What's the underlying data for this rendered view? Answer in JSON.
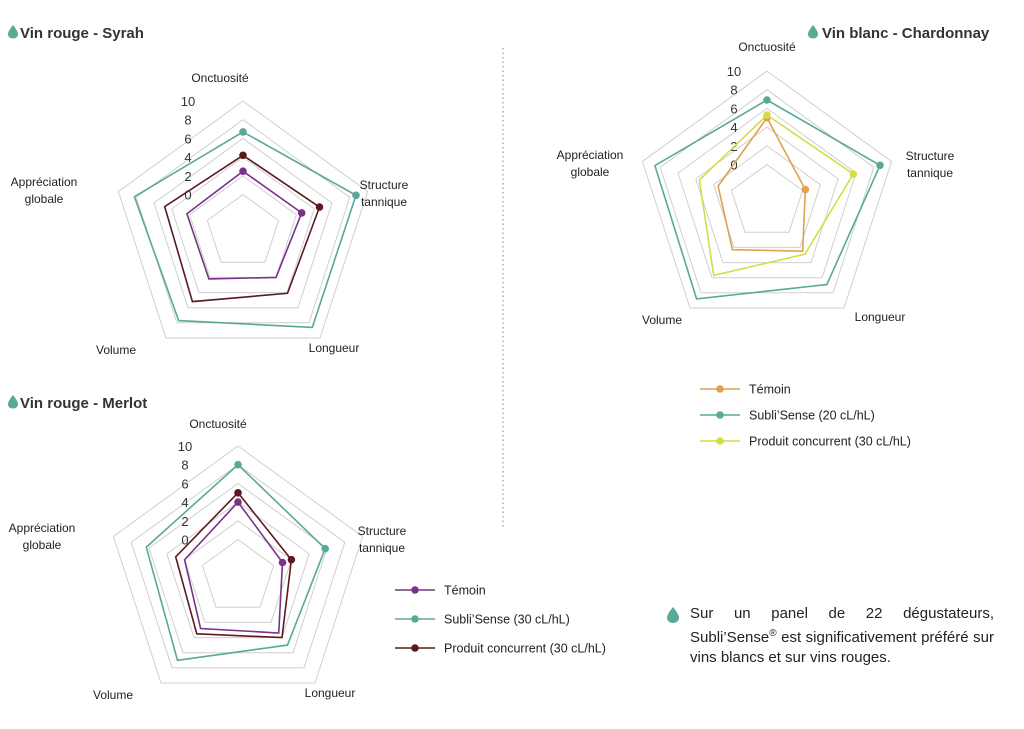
{
  "colors": {
    "grid": "#cfcfcf",
    "drop": "#5aa898",
    "temoin_red": "#7a3289",
    "subli": "#5aa898",
    "concurrent_red": "#5b1a1e",
    "temoin_white": "#e0a24e",
    "concurrent_white": "#d4dc46"
  },
  "note": {
    "before": "Sur un panel de 22 dégustateurs, Subli’Sense",
    "sup": "®",
    "after": " est significativement préféré sur vins blancs et sur vins rouges."
  },
  "chart_data": [
    {
      "type": "radar",
      "title": "Vin rouge - Syrah",
      "axes": [
        "Onctuosité",
        "Structure tannique",
        "Longueur",
        "Volume",
        "Appréciation globale"
      ],
      "ticks": [
        "0",
        "2",
        "4",
        "6",
        "8",
        "10"
      ],
      "range": [
        -4,
        10
      ],
      "series": [
        {
          "name": "Témoin",
          "color": "#7a3289",
          "values": [
            2.5,
            2.6,
            2.0,
            2.2,
            2.3
          ]
        },
        {
          "name": "Subli’Sense (30 cL/hL)",
          "color": "#5aa898",
          "values": [
            6.7,
            8.7,
            8.6,
            7.7,
            8.2
          ]
        },
        {
          "name": "Produit concurrent (30 cL/hL)",
          "color": "#5b1a1e",
          "values": [
            4.2,
            4.6,
            4.1,
            5.2,
            4.8
          ]
        }
      ]
    },
    {
      "type": "radar",
      "title": "Vin rouge - Merlot",
      "axes": [
        "Onctuosité",
        "Structure tannique",
        "Longueur",
        "Volume",
        "Appréciation globale"
      ],
      "ticks": [
        "0",
        "2",
        "4",
        "6",
        "8",
        "10"
      ],
      "range": [
        -4,
        10
      ],
      "series": [
        {
          "name": "Témoin",
          "color": "#7a3289",
          "values": [
            4.0,
            1.0,
            3.4,
            2.8,
            2.0
          ]
        },
        {
          "name": "Subli’Sense (30 cL/hL)",
          "color": "#5aa898",
          "values": [
            8.0,
            5.8,
            5.0,
            7.0,
            6.3
          ]
        },
        {
          "name": "Produit concurrent (30 cL/hL)",
          "color": "#5b1a1e",
          "values": [
            5.0,
            2.0,
            4.0,
            3.5,
            3.0
          ]
        }
      ],
      "legend": [
        {
          "label": "Témoin",
          "color": "#7a3289"
        },
        {
          "label": "Subli’Sense (30 cL/hL)",
          "color": "#5aa898"
        },
        {
          "label": "Produit concurrent (30 cL/hL)",
          "color": "#5b1a1e"
        }
      ]
    },
    {
      "type": "radar",
      "title": "Vin blanc - Chardonnay",
      "axes": [
        "Onctuosité",
        "Structure tannique",
        "Longueur",
        "Volume",
        "Appréciation globale"
      ],
      "ticks": [
        "0",
        "2",
        "4",
        "6",
        "8",
        "10"
      ],
      "range": [
        -4,
        10
      ],
      "series": [
        {
          "name": "Témoin",
          "color": "#e0a24e",
          "values": [
            5.0,
            0.3,
            2.5,
            2.3,
            1.5
          ]
        },
        {
          "name": "Subli’Sense (20 cL/hL)",
          "color": "#5aa898",
          "values": [
            6.9,
            8.7,
            6.9,
            8.8,
            8.6
          ]
        },
        {
          "name": "Produit concurrent (30 cL/hL)",
          "color": "#d4dc46",
          "values": [
            5.3,
            5.7,
            2.9,
            5.7,
            3.6
          ]
        }
      ],
      "legend": [
        {
          "label": "Témoin",
          "color": "#e0a24e"
        },
        {
          "label": "Subli’Sense (20 cL/hL)",
          "color": "#5aa898"
        },
        {
          "label": "Produit concurrent (30 cL/hL)",
          "color": "#d4dc46"
        }
      ]
    }
  ]
}
